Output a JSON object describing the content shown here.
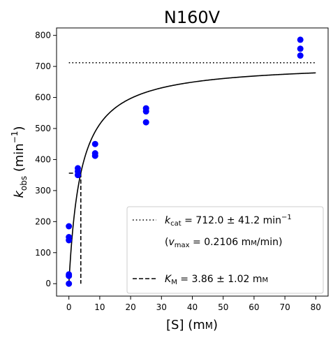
{
  "chart_data": {
    "type": "scatter",
    "title": "N160V",
    "xlabel": "[S] (mм)",
    "ylabel": "k_obs (min⁻¹)",
    "xlim": [
      -4,
      84
    ],
    "ylim": [
      -40,
      824
    ],
    "x_ticks": [
      0,
      10,
      20,
      30,
      40,
      50,
      60,
      70,
      80
    ],
    "y_ticks": [
      0,
      100,
      200,
      300,
      400,
      500,
      600,
      700,
      800
    ],
    "grid": false,
    "legend_position": "lower-right",
    "colors": {
      "points": "#0000ff",
      "fit": "#000000"
    },
    "points": [
      {
        "x": 0,
        "y": 0
      },
      {
        "x": 0,
        "y": 25
      },
      {
        "x": 0,
        "y": 30
      },
      {
        "x": 0,
        "y": 140
      },
      {
        "x": 0,
        "y": 150
      },
      {
        "x": 0,
        "y": 185
      },
      {
        "x": 2.9,
        "y": 350
      },
      {
        "x": 2.9,
        "y": 362
      },
      {
        "x": 2.9,
        "y": 372
      },
      {
        "x": 8.5,
        "y": 412
      },
      {
        "x": 8.5,
        "y": 420
      },
      {
        "x": 8.5,
        "y": 450
      },
      {
        "x": 25,
        "y": 520
      },
      {
        "x": 25,
        "y": 555
      },
      {
        "x": 25,
        "y": 565
      },
      {
        "x": 75,
        "y": 735
      },
      {
        "x": 75,
        "y": 757
      },
      {
        "x": 75,
        "y": 786
      }
    ],
    "fit": {
      "model": "michaelis-menten",
      "kcat": 712.0,
      "km": 3.86,
      "x_range": [
        0.02,
        80
      ]
    },
    "kcat_line": {
      "y": 712,
      "x_range": [
        0,
        80
      ]
    },
    "km_line": {
      "x": 3.86,
      "y": 356
    },
    "legend": {
      "kcat_label": "k_cat = 712.0 ± 41.2 min⁻¹",
      "vmax_label": "(v_max = 0.2106 mм/min)",
      "km_label": "K_M = 3.86 ± 1.02 mм"
    }
  }
}
